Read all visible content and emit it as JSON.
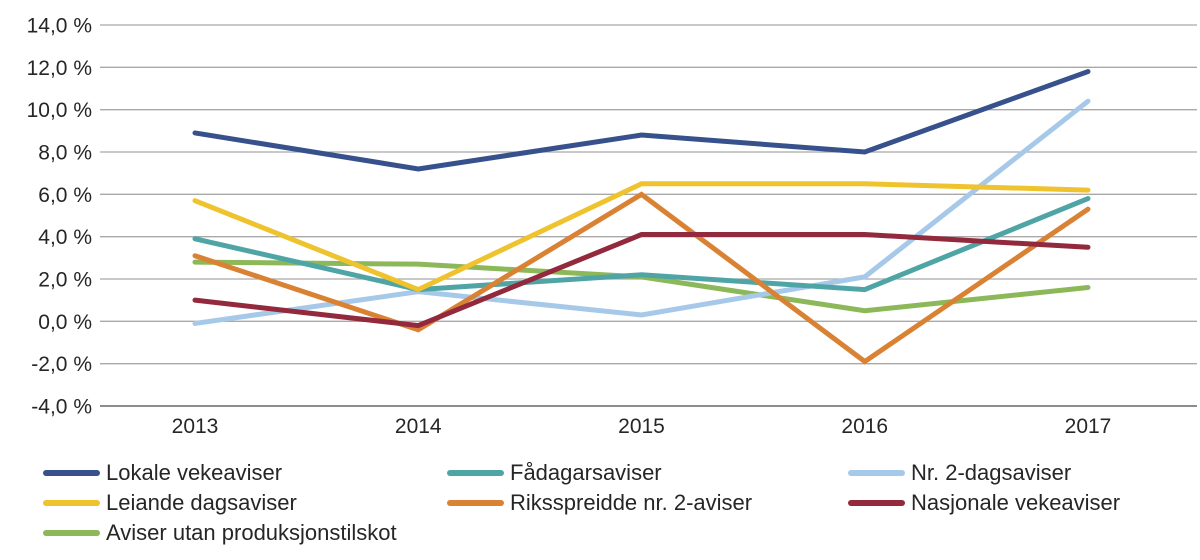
{
  "chart_data": {
    "type": "line",
    "title": "",
    "xlabel": "",
    "ylabel": "",
    "grid": true,
    "legend_position": "bottom",
    "ylim": [
      -4,
      14
    ],
    "x_categories": [
      "2013",
      "2014",
      "2015",
      "2016",
      "2017"
    ],
    "y_ticks": [
      {
        "label": "14,0 %",
        "value": 14
      },
      {
        "label": "12,0 %",
        "value": 12
      },
      {
        "label": "10,0 %",
        "value": 10
      },
      {
        "label": "8,0 %",
        "value": 8
      },
      {
        "label": "6,0 %",
        "value": 6
      },
      {
        "label": "4,0 %",
        "value": 4
      },
      {
        "label": "2,0 %",
        "value": 2
      },
      {
        "label": "0,0 %",
        "value": 0
      },
      {
        "label": "-2,0 %",
        "value": -2
      },
      {
        "label": "-4,0 %",
        "value": -4
      }
    ],
    "series": [
      {
        "name": "Lokale vekeaviser",
        "color": "#36518B",
        "values": [
          8.9,
          7.2,
          8.8,
          8.0,
          11.8
        ]
      },
      {
        "name": "Fådagarsaviser",
        "color": "#4FA5A5",
        "values": [
          3.9,
          1.5,
          2.2,
          1.5,
          5.8
        ]
      },
      {
        "name": "Nr. 2-dagsaviser",
        "color": "#A6C9E9",
        "values": [
          -0.1,
          1.4,
          0.3,
          2.1,
          10.4
        ]
      },
      {
        "name": "Leiande dagsaviser",
        "color": "#EEC32E",
        "values": [
          5.7,
          1.5,
          6.5,
          6.5,
          6.2
        ]
      },
      {
        "name": "Riksspreidde nr. 2-aviser",
        "color": "#DA8234",
        "values": [
          3.1,
          -0.4,
          6.0,
          -1.9,
          5.3
        ]
      },
      {
        "name": "Nasjonale vekeaviser",
        "color": "#92293C",
        "values": [
          1.0,
          -0.2,
          4.1,
          4.1,
          3.5
        ]
      },
      {
        "name": "Aviser utan produksjonstilskot",
        "color": "#8DB85A",
        "values": [
          2.8,
          2.7,
          2.1,
          0.5,
          1.6
        ]
      }
    ],
    "draw_order": [
      6,
      2,
      1,
      4,
      5,
      3,
      0
    ],
    "colors": {
      "gridline": "#A9A9A9",
      "axis_line": "#8C8C8C",
      "text": "#262626"
    }
  }
}
